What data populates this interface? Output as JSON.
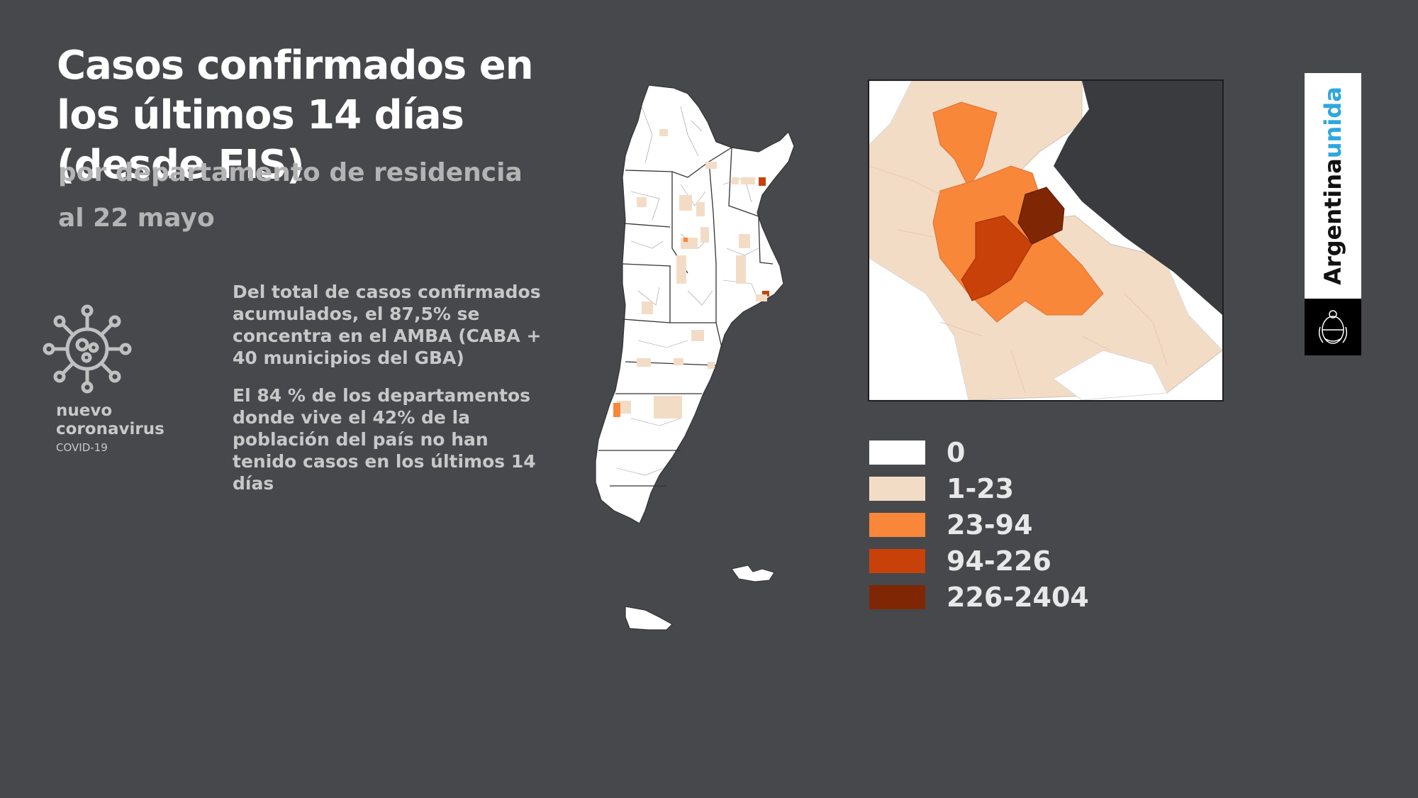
{
  "header": {
    "title": "Casos confirmados en los últimos 14 días (desde FIS)",
    "subtitle": "por departamento de residencia",
    "date": "al 22 mayo"
  },
  "virus_label": {
    "name_line1": "nuevo",
    "name_line2": "coronavirus",
    "code": "COVID-19"
  },
  "notes": [
    "Del total de casos confirmados acumulados, el 87,5% se concentra en el AMBA (CABA + 40 municipios del GBA)",
    "El 84 % de los departamentos donde vive el 42% de la población del país no han tenido casos en los últimos 14 días"
  ],
  "legend": [
    {
      "label": "0",
      "color": "#ffffff"
    },
    {
      "label": "1-23",
      "color": "#f3dcc6"
    },
    {
      "label": "23-94",
      "color": "#f8873a"
    },
    {
      "label": "94-226",
      "color": "#c84109"
    },
    {
      "label": "226-2404",
      "color": "#7f2704"
    }
  ],
  "brand": {
    "text_main": "Argentina",
    "text_accent": "unida",
    "accent_color": "#2ea7df",
    "emblem_icon": "national-coat-of-arms-icon"
  },
  "icons": {
    "virus": "virus-icon"
  }
}
